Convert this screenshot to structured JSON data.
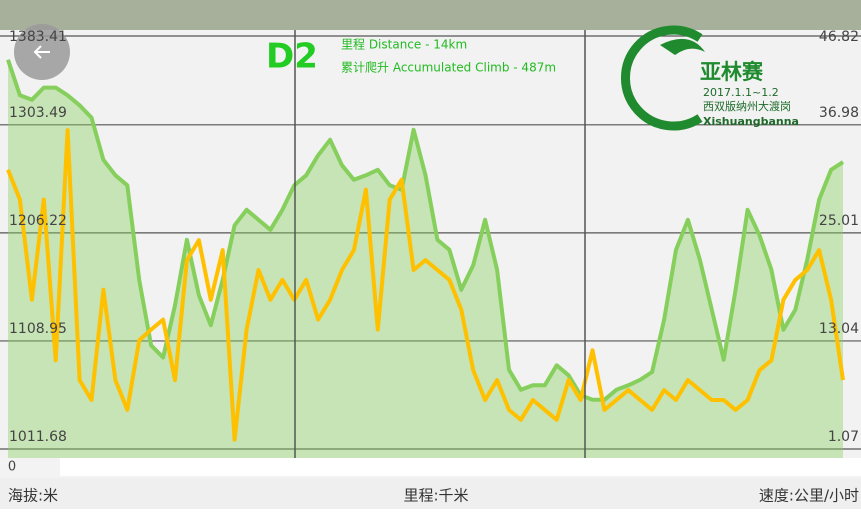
{
  "chart_data": {
    "type": "line",
    "title": "D2",
    "annotations": [
      "里程 Distance - 14km",
      "累计爬升 Accumulated Climb - 487m"
    ],
    "logo": {
      "name": "亚林赛",
      "date": "2017.1.1~1.2",
      "place": "西双版纳州大渡岗",
      "place_en": "Xishuangbanna"
    },
    "x_label": "里程:千米",
    "y_label": "海拔:米",
    "y2_label": "速度:公里/小时",
    "x": [
      0,
      0.2,
      0.4,
      0.6,
      0.8,
      1,
      1.2,
      1.4,
      1.6,
      1.8,
      2,
      2.2,
      2.4,
      2.6,
      2.8,
      3,
      3.2,
      3.4,
      3.6,
      3.8,
      4,
      4.2,
      4.4,
      4.6,
      4.8,
      5,
      5.2,
      5.4,
      5.6,
      5.8,
      6,
      6.2,
      6.4,
      6.6,
      6.8,
      7,
      7.2,
      7.4,
      7.6,
      7.8,
      8,
      8.2,
      8.4,
      8.6,
      8.8,
      9,
      9.2,
      9.4,
      9.6,
      9.8,
      10,
      10.2,
      10.4,
      10.6,
      10.8,
      11,
      11.2,
      11.4,
      11.6,
      11.8,
      12,
      12.2,
      12.4,
      12.6,
      12.8,
      13,
      13.2,
      13.4,
      13.6,
      13.8,
      14
    ],
    "xlim": [
      0,
      14
    ],
    "xticks": [
      0
    ],
    "ylim": [
      1011.68,
      1383.41
    ],
    "yticks": [
      1011.68,
      1108.95,
      1206.22,
      1303.49,
      1383.41
    ],
    "y2lim": [
      1.07,
      46.82
    ],
    "y2ticks": [
      1.07,
      13.04,
      25.01,
      36.98,
      46.82
    ],
    "grid": true,
    "series": [
      {
        "color": "#86cf5c",
        "area": true,
        "values": [
          1362,
          1330,
          1326,
          1337,
          1337,
          1330,
          1321,
          1310,
          1272,
          1258,
          1249,
          1164,
          1105,
          1094,
          1141,
          1200,
          1150,
          1123,
          1164,
          1213,
          1227,
          1218,
          1209,
          1227,
          1249,
          1258,
          1276,
          1290,
          1267,
          1254,
          1258,
          1263,
          1249,
          1245,
          1299,
          1258,
          1200,
          1191,
          1155,
          1177,
          1218,
          1173,
          1083,
          1065,
          1069,
          1069,
          1087,
          1078,
          1060,
          1056,
          1056,
          1065,
          1069,
          1074,
          1081,
          1128,
          1191,
          1218,
          1182,
          1137,
          1092,
          1155,
          1227,
          1204,
          1173,
          1119,
          1137,
          1182,
          1236,
          1263,
          1270
        ]
      },
      {
        "color": "#ffc000",
        "axis": "y2",
        "values": [
          32.0,
          28.7,
          17.6,
          28.7,
          10.9,
          36.4,
          8.7,
          6.5,
          18.7,
          8.7,
          5.4,
          13.1,
          14.3,
          15.4,
          8.7,
          22.0,
          24.2,
          17.6,
          23.1,
          2.1,
          14.3,
          20.9,
          17.6,
          19.8,
          17.6,
          19.8,
          15.4,
          17.6,
          20.9,
          23.1,
          29.8,
          14.3,
          28.7,
          30.9,
          20.9,
          22.0,
          20.9,
          19.8,
          16.5,
          9.8,
          6.5,
          8.7,
          5.4,
          4.3,
          6.5,
          5.4,
          4.3,
          8.7,
          6.5,
          12.0,
          5.4,
          6.5,
          7.6,
          6.5,
          5.4,
          7.6,
          6.5,
          8.7,
          7.6,
          6.5,
          6.5,
          5.4,
          6.5,
          9.8,
          10.9,
          17.6,
          19.8,
          20.9,
          23.1,
          17.6,
          8.7
        ]
      }
    ]
  }
}
